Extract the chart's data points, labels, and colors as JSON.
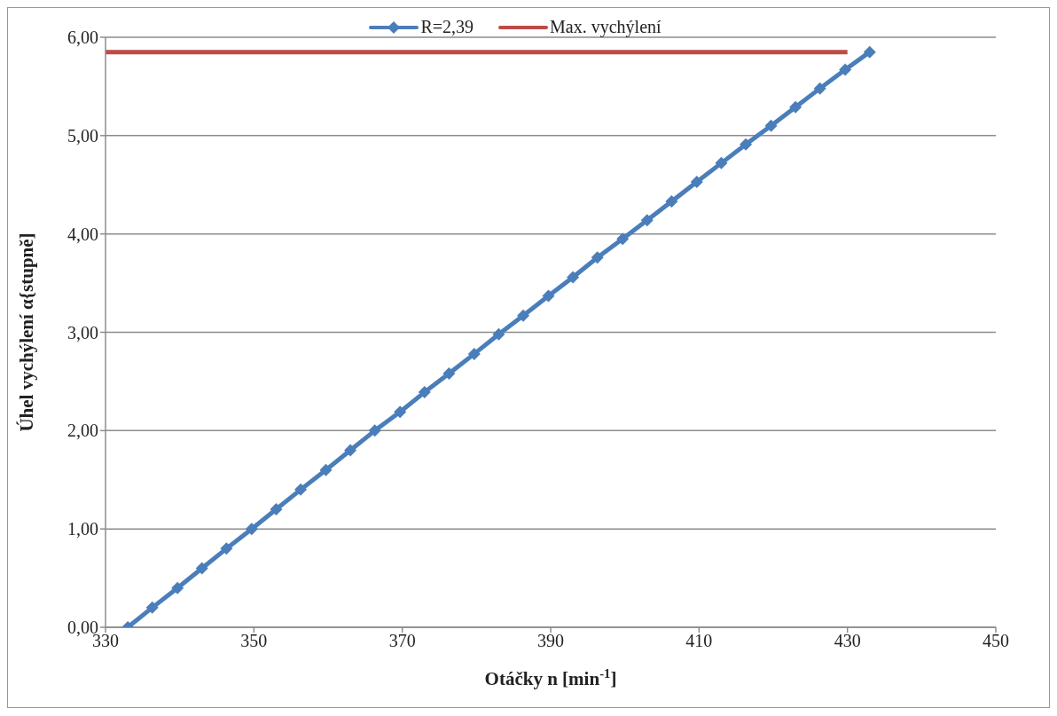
{
  "chart_data": {
    "type": "line",
    "xlabel": "Otáčky n [min$^{-1}$]",
    "ylabel": "Úhel vychýlení α{stupně]",
    "xlim": [
      330,
      450
    ],
    "xticks": [
      330,
      350,
      370,
      390,
      410,
      430,
      450
    ],
    "ylim": [
      0,
      6
    ],
    "yticks": [
      {
        "value": 0,
        "label": "0,00"
      },
      {
        "value": 1,
        "label": "1,00"
      },
      {
        "value": 2,
        "label": "2,00"
      },
      {
        "value": 3,
        "label": "3,00"
      },
      {
        "value": 4,
        "label": "4,00"
      },
      {
        "value": 5,
        "label": "5,00"
      },
      {
        "value": 6,
        "label": "6,00"
      }
    ],
    "grid": "y",
    "legend": "top",
    "marker": "diamond",
    "line_style": "solid",
    "series": [
      {
        "name": "R=2,39",
        "color": "#4a7ebb",
        "x": [
          333,
          336.3,
          339.7,
          343,
          346.3,
          349.7,
          353,
          356.3,
          359.7,
          363,
          366.3,
          369.7,
          373,
          376.3,
          379.7,
          383,
          386.3,
          389.7,
          393,
          396.3,
          399.7,
          403,
          406.3,
          409.7,
          413,
          416.3,
          419.7,
          423,
          426.3,
          429.7,
          433
        ],
        "values": [
          0,
          0.2,
          0.4,
          0.6,
          0.8,
          1.0,
          1.2,
          1.4,
          1.6,
          1.8,
          2.0,
          2.19,
          2.39,
          2.58,
          2.78,
          2.98,
          3.17,
          3.37,
          3.56,
          3.76,
          3.95,
          4.14,
          4.33,
          4.53,
          4.72,
          4.91,
          5.1,
          5.29,
          5.48,
          5.67,
          5.85
        ]
      },
      {
        "name": "Max. vychýlení",
        "color": "#be4b48",
        "x": [
          330,
          430
        ],
        "values": [
          5.85,
          5.85
        ],
        "marker": "none"
      }
    ]
  }
}
